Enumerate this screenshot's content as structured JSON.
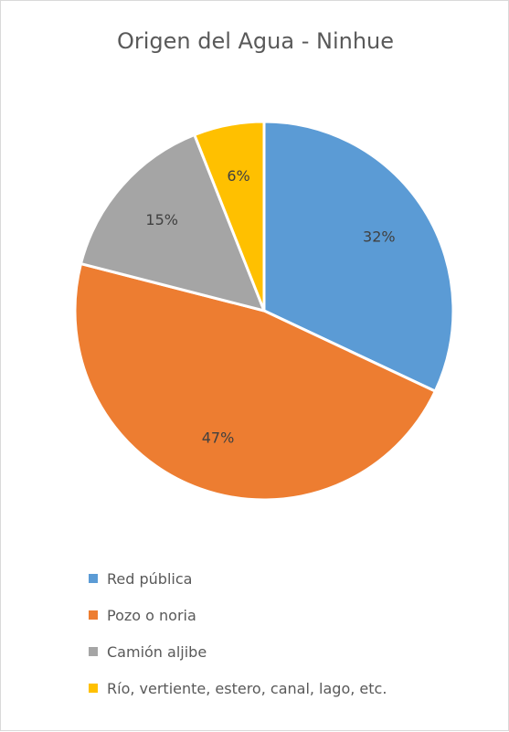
{
  "chart_data": {
    "type": "pie",
    "title": "Origen del Agua - Ninhue",
    "slices": [
      {
        "label": "Red pública",
        "value": 32,
        "value_label": "32%",
        "color": "#5B9BD5"
      },
      {
        "label": "Pozo o noria",
        "value": 47,
        "value_label": "47%",
        "color": "#ED7D31"
      },
      {
        "label": "Camión aljibe",
        "value": 15,
        "value_label": "15%",
        "color": "#A5A5A5"
      },
      {
        "label": "Río, vertiente, estero, canal, lago, etc.",
        "value": 6,
        "value_label": "6%",
        "color": "#FFC000"
      }
    ],
    "legend_position": "bottom"
  }
}
